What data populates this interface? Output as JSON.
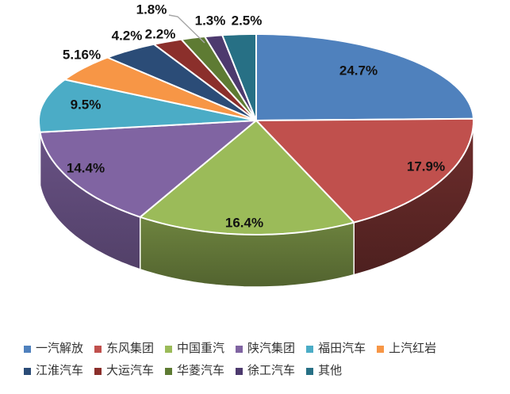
{
  "chart_data": {
    "type": "pie",
    "effect": "3d",
    "title": "",
    "direction": "clockwise",
    "start_angle_deg": 0,
    "legend_position": "bottom",
    "slices": [
      {
        "label": "一汽解放",
        "value": 24.7,
        "display": "24.7%",
        "color": "#4F81BD"
      },
      {
        "label": "东风集团",
        "value": 17.9,
        "display": "17.9%",
        "color": "#C0504D"
      },
      {
        "label": "中国重汽",
        "value": 16.4,
        "display": "16.4%",
        "color": "#9BBB59"
      },
      {
        "label": "陕汽集团",
        "value": 14.4,
        "display": "14.4%",
        "color": "#8064A2"
      },
      {
        "label": "福田汽车",
        "value": 9.5,
        "display": "9.5%",
        "color": "#4BACC6"
      },
      {
        "label": "上汽红岩",
        "value": 5.16,
        "display": "5.16%",
        "color": "#F79646"
      },
      {
        "label": "江淮汽车",
        "value": 4.2,
        "display": "4.2%",
        "color": "#2B4C77"
      },
      {
        "label": "大运汽车",
        "value": 2.2,
        "display": "2.2%",
        "color": "#8B2F2B"
      },
      {
        "label": "华菱汽车",
        "value": 1.8,
        "display": "1.8%",
        "color": "#5E7B33"
      },
      {
        "label": "徐工汽车",
        "value": 1.3,
        "display": "1.3%",
        "color": "#4D3A6E"
      },
      {
        "label": "其他",
        "value": 2.5,
        "display": "2.5%",
        "color": "#277085"
      }
    ],
    "legend_rows": [
      [
        0,
        1,
        2,
        3,
        4,
        5
      ],
      [
        6,
        7,
        8,
        9,
        10
      ]
    ],
    "style": {
      "background": "#ffffff",
      "slice_border_color": "#ffffff",
      "value_label_color": "#111111",
      "leader_line_color": "#a6a6a6",
      "legend_text_color": "#333333"
    }
  }
}
